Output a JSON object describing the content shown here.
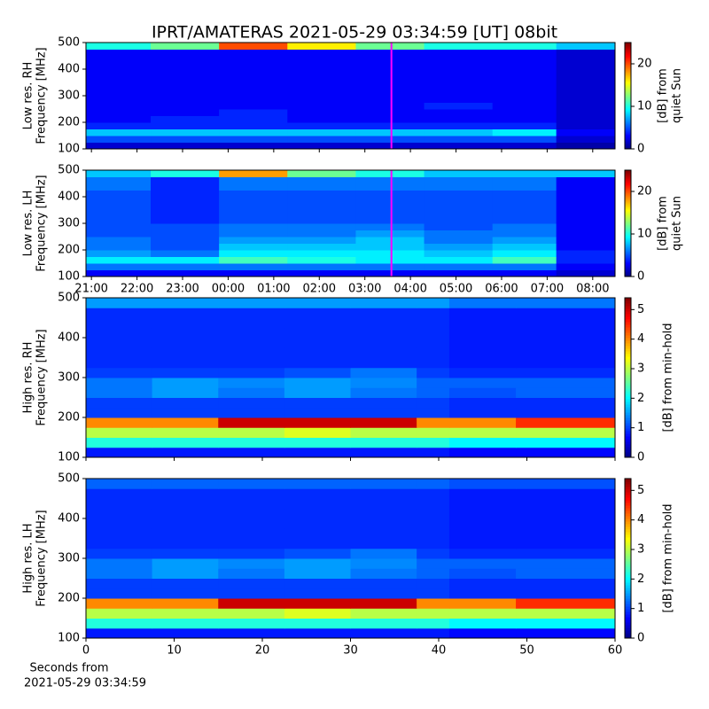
{
  "chart_data": [
    {
      "type": "heatmap",
      "title": "IPRT/AMATERAS 2021-05-29 03:34:59 [UT]   08bit",
      "ylabel": [
        "Low res. RH",
        "Frequency [MHz]"
      ],
      "zlabel": [
        "[dB] from",
        "quiet Sun"
      ],
      "xlim": [
        20.88,
        32.49
      ],
      "ylim": [
        100,
        500
      ],
      "zlim": [
        0,
        25
      ],
      "xticks": [
        21,
        22,
        23,
        24,
        25,
        26,
        27,
        28,
        29,
        30,
        31,
        32
      ],
      "show_xticklabels": false,
      "yticks": [
        100,
        200,
        300,
        400,
        500
      ],
      "zticks": [
        0,
        10,
        20
      ],
      "marker_x": 27.583,
      "marker_color": "#ff00ff",
      "colormap": "jet",
      "x_bins": [
        20.88,
        22.3,
        23.8,
        25.3,
        26.8,
        28.3,
        29.8,
        31.2,
        32.49
      ],
      "y_bins": [
        100,
        125,
        150,
        175,
        200,
        225,
        250,
        275,
        300,
        325,
        350,
        375,
        400,
        425,
        450,
        475,
        500
      ],
      "z": [
        [
          2,
          2,
          2,
          2,
          2,
          2,
          2,
          1
        ],
        [
          5,
          5,
          5,
          5,
          5,
          5,
          5,
          2
        ],
        [
          8,
          8,
          8,
          8,
          8,
          8,
          9,
          3
        ],
        [
          4,
          4,
          4,
          4,
          4,
          4,
          4,
          2
        ],
        [
          3,
          4,
          4,
          3,
          3,
          3,
          3,
          2
        ],
        [
          3,
          3,
          4,
          3,
          3,
          3,
          3,
          2
        ],
        [
          3,
          3,
          3,
          3,
          3,
          4,
          3,
          2
        ],
        [
          3,
          3,
          3,
          3,
          3,
          3,
          3,
          2
        ],
        [
          3,
          3,
          3,
          3,
          3,
          3,
          3,
          2
        ],
        [
          3,
          3,
          3,
          3,
          3,
          3,
          3,
          2
        ],
        [
          3,
          3,
          3,
          3,
          3,
          3,
          3,
          2
        ],
        [
          3,
          3,
          3,
          3,
          3,
          3,
          3,
          2
        ],
        [
          3,
          3,
          3,
          3,
          3,
          3,
          3,
          2
        ],
        [
          3,
          3,
          3,
          3,
          3,
          3,
          3,
          2
        ],
        [
          3,
          3,
          3,
          3,
          3,
          3,
          3,
          2
        ],
        [
          10,
          12,
          20,
          16,
          12,
          10,
          10,
          8
        ]
      ]
    },
    {
      "type": "heatmap",
      "ylabel": [
        "Low res. LH",
        "Frequency [MHz]"
      ],
      "zlabel": [
        "[dB] from",
        "quiet Sun"
      ],
      "xlim": [
        20.88,
        32.49
      ],
      "ylim": [
        100,
        500
      ],
      "zlim": [
        0,
        25
      ],
      "xticks": [
        {
          "value": 21,
          "label": "21:00"
        },
        {
          "value": 22,
          "label": "22:00"
        },
        {
          "value": 23,
          "label": "23:00"
        },
        {
          "value": 24,
          "label": "00:00"
        },
        {
          "value": 25,
          "label": "01:00"
        },
        {
          "value": 26,
          "label": "02:00"
        },
        {
          "value": 27,
          "label": "03:00"
        },
        {
          "value": 28,
          "label": "04:00"
        },
        {
          "value": 29,
          "label": "05:00"
        },
        {
          "value": 30,
          "label": "06:00"
        },
        {
          "value": 31,
          "label": "07:00"
        },
        {
          "value": 32,
          "label": "08:00"
        }
      ],
      "show_xticklabels": true,
      "yticks": [
        100,
        200,
        300,
        400,
        500
      ],
      "zticks": [
        0,
        10,
        20
      ],
      "marker_x": 27.583,
      "marker_color": "#ff00ff",
      "colormap": "jet",
      "x_bins": [
        20.88,
        22.3,
        23.8,
        25.3,
        26.8,
        28.3,
        29.8,
        31.2,
        32.49
      ],
      "y_bins": [
        100,
        125,
        150,
        175,
        200,
        225,
        250,
        275,
        300,
        325,
        350,
        375,
        400,
        425,
        450,
        475,
        500
      ],
      "z": [
        [
          3,
          3,
          3,
          3,
          3,
          3,
          3,
          2
        ],
        [
          6,
          6,
          6,
          6,
          6,
          6,
          6,
          3
        ],
        [
          9,
          9,
          11,
          10,
          9,
          9,
          11,
          4
        ],
        [
          7,
          6,
          9,
          9,
          9,
          8,
          9,
          4
        ],
        [
          6,
          5,
          8,
          8,
          8,
          7,
          8,
          3
        ],
        [
          6,
          5,
          7,
          7,
          8,
          6,
          7,
          3
        ],
        [
          5,
          5,
          6,
          6,
          7,
          6,
          6,
          3
        ],
        [
          5,
          5,
          6,
          6,
          6,
          5,
          6,
          3
        ],
        [
          5,
          4,
          5,
          5,
          5,
          5,
          5,
          3
        ],
        [
          5,
          4,
          5,
          5,
          5,
          5,
          5,
          3
        ],
        [
          5,
          4,
          5,
          5,
          5,
          5,
          5,
          3
        ],
        [
          5,
          4,
          5,
          5,
          5,
          5,
          5,
          3
        ],
        [
          5,
          4,
          5,
          5,
          5,
          5,
          5,
          3
        ],
        [
          6,
          4,
          6,
          6,
          6,
          6,
          6,
          3
        ],
        [
          6,
          4,
          6,
          6,
          6,
          6,
          6,
          3
        ],
        [
          8,
          10,
          18,
          12,
          10,
          8,
          8,
          8
        ]
      ]
    },
    {
      "type": "heatmap",
      "ylabel": [
        "High res. RH",
        "Frequency [MHz]"
      ],
      "zlabel": [
        "[dB] from min-hold"
      ],
      "xlim": [
        0,
        60
      ],
      "ylim": [
        100,
        500
      ],
      "zlim": [
        0,
        5.4
      ],
      "xticks": [
        0,
        10,
        20,
        30,
        40,
        50,
        60
      ],
      "show_xticklabels": false,
      "yticks": [
        100,
        200,
        300,
        400,
        500
      ],
      "zticks": [
        0,
        1,
        2,
        3,
        4,
        5
      ],
      "colormap": "jet",
      "x_bins": [
        0,
        7.5,
        15,
        22.5,
        30,
        37.5,
        41.2,
        48.75,
        60
      ],
      "y_bins": [
        100,
        125,
        150,
        175,
        200,
        225,
        250,
        275,
        300,
        325,
        350,
        375,
        400,
        425,
        450,
        475,
        500
      ],
      "z": [
        [
          0.8,
          0.8,
          0.8,
          0.8,
          0.8,
          0.8,
          0.7,
          0.7
        ],
        [
          2.2,
          2.2,
          2.2,
          2.2,
          2.2,
          2.2,
          2,
          2
        ],
        [
          3,
          3,
          3,
          3.2,
          3,
          3,
          3,
          3
        ],
        [
          4,
          4,
          5,
          5,
          5,
          4,
          4,
          4.5
        ],
        [
          1,
          1,
          1,
          1,
          1,
          1,
          0.9,
          0.9
        ],
        [
          1,
          1,
          1,
          1,
          1,
          1,
          0.9,
          0.9
        ],
        [
          1.3,
          1.5,
          1.3,
          1.5,
          1.3,
          1.2,
          1.1,
          1.2
        ],
        [
          1.3,
          1.5,
          1.4,
          1.5,
          1.4,
          1.2,
          1.2,
          1.2
        ],
        [
          1,
          1,
          1,
          1.1,
          1.3,
          1,
          0.9,
          0.9
        ],
        [
          0.9,
          0.9,
          0.9,
          0.9,
          0.9,
          0.9,
          0.8,
          0.8
        ],
        [
          0.9,
          0.9,
          0.9,
          0.9,
          0.9,
          0.9,
          0.8,
          0.8
        ],
        [
          0.9,
          0.9,
          0.9,
          0.9,
          0.9,
          0.9,
          0.8,
          0.8
        ],
        [
          0.9,
          0.9,
          0.9,
          0.9,
          0.9,
          0.9,
          0.8,
          0.8
        ],
        [
          0.9,
          0.9,
          0.9,
          0.9,
          0.9,
          0.9,
          0.8,
          0.8
        ],
        [
          0.9,
          0.9,
          0.9,
          0.9,
          0.9,
          0.9,
          0.8,
          0.8
        ],
        [
          1.5,
          1.5,
          1.5,
          1.5,
          1.5,
          1.5,
          1.3,
          1.3
        ]
      ]
    },
    {
      "type": "heatmap",
      "ylabel": [
        "High res. LH",
        "Frequency [MHz]"
      ],
      "zlabel": [
        "[dB] from min-hold"
      ],
      "xlabel": [
        "Seconds from",
        "2021-05-29 03:34:59"
      ],
      "xlim": [
        0,
        60
      ],
      "ylim": [
        100,
        500
      ],
      "zlim": [
        0,
        5.4
      ],
      "xticks": [
        0,
        10,
        20,
        30,
        40,
        50,
        60
      ],
      "show_xticklabels": true,
      "yticks": [
        100,
        200,
        300,
        400,
        500
      ],
      "zticks": [
        0,
        1,
        2,
        3,
        4,
        5
      ],
      "colormap": "jet",
      "x_bins": [
        0,
        7.5,
        15,
        22.5,
        30,
        37.5,
        41.2,
        48.75,
        60
      ],
      "y_bins": [
        100,
        125,
        150,
        175,
        200,
        225,
        250,
        275,
        300,
        325,
        350,
        375,
        400,
        425,
        450,
        475,
        500
      ],
      "z": [
        [
          0.8,
          0.8,
          0.8,
          0.8,
          0.8,
          0.8,
          0.7,
          0.7
        ],
        [
          2.2,
          2.2,
          2.2,
          2.2,
          2.2,
          2.2,
          2,
          2
        ],
        [
          3,
          3,
          3,
          3.2,
          3,
          3,
          3,
          3
        ],
        [
          4,
          4,
          5,
          5,
          5,
          4,
          4,
          4.5
        ],
        [
          1,
          1,
          1,
          1,
          1,
          1,
          0.9,
          0.9
        ],
        [
          1,
          1,
          1,
          1,
          1,
          1,
          0.9,
          0.9
        ],
        [
          1.3,
          1.5,
          1.3,
          1.5,
          1.3,
          1.2,
          1.1,
          1.2
        ],
        [
          1.3,
          1.5,
          1.4,
          1.5,
          1.4,
          1.2,
          1.2,
          1.2
        ],
        [
          1,
          1,
          1,
          1.1,
          1.3,
          1,
          0.9,
          0.9
        ],
        [
          0.9,
          0.9,
          0.9,
          0.9,
          0.9,
          0.9,
          0.8,
          0.8
        ],
        [
          0.9,
          0.9,
          0.9,
          0.9,
          0.9,
          0.9,
          0.8,
          0.8
        ],
        [
          0.9,
          0.9,
          0.9,
          0.9,
          0.9,
          0.9,
          0.8,
          0.8
        ],
        [
          0.9,
          0.9,
          0.9,
          0.9,
          0.9,
          0.9,
          0.8,
          0.8
        ],
        [
          0.9,
          0.9,
          0.9,
          0.9,
          0.9,
          0.9,
          0.8,
          0.8
        ],
        [
          0.9,
          0.9,
          0.9,
          0.9,
          0.9,
          0.9,
          0.8,
          0.8
        ],
        [
          1.2,
          1.2,
          1.2,
          1.2,
          1.2,
          1.2,
          1.1,
          1.1
        ]
      ]
    }
  ]
}
